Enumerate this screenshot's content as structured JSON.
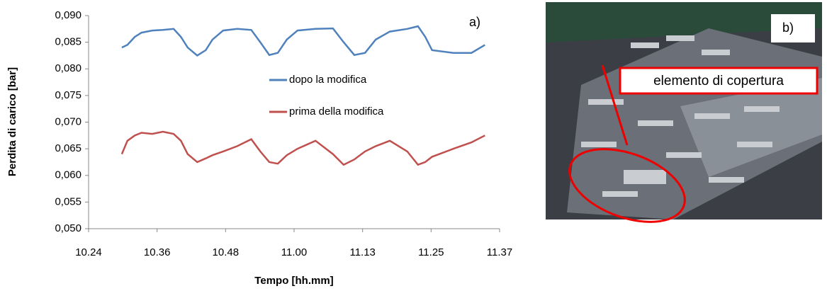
{
  "chart_data": {
    "type": "line",
    "ylabel": "Perdita di carico [bar]",
    "xlabel": "Tempo [hh.mm]",
    "annotations": [
      "a)",
      "b)",
      "elemento di copertura"
    ],
    "xlim": [
      624,
      697
    ],
    "xticks": [
      {
        "value": 624,
        "label": "10.24"
      },
      {
        "value": 636.17,
        "label": "10.36"
      },
      {
        "value": 648.33,
        "label": "10.48"
      },
      {
        "value": 660.5,
        "label": "11.00"
      },
      {
        "value": 672.67,
        "label": "11.13"
      },
      {
        "value": 684.83,
        "label": "11.25"
      },
      {
        "value": 697,
        "label": "11.37"
      }
    ],
    "ylim": [
      0.05,
      0.09
    ],
    "yticks": [
      {
        "value": 0.05,
        "label": "0,050"
      },
      {
        "value": 0.055,
        "label": "0,055"
      },
      {
        "value": 0.06,
        "label": "0,060"
      },
      {
        "value": 0.065,
        "label": "0,065"
      },
      {
        "value": 0.07,
        "label": "0,070"
      },
      {
        "value": 0.075,
        "label": "0,075"
      },
      {
        "value": 0.08,
        "label": "0,080"
      },
      {
        "value": 0.085,
        "label": "0,085"
      },
      {
        "value": 0.09,
        "label": "0,090"
      }
    ],
    "grid": false,
    "x": [
      629.9,
      630.9,
      632.2,
      633.4,
      635.3,
      637.2,
      639.1,
      640.4,
      641.6,
      643.3,
      644.8,
      646.0,
      647.9,
      650.4,
      652.9,
      654.5,
      656.1,
      657.6,
      659.2,
      661.1,
      664.3,
      667.4,
      669.3,
      671.2,
      673.1,
      675.0,
      677.5,
      680.6,
      682.5,
      683.8,
      685.0,
      688.8,
      692.0,
      694.4
    ],
    "series": [
      {
        "name": "dopo la modifica",
        "color": "#4f81bd",
        "values": [
          0.084,
          0.0845,
          0.086,
          0.0868,
          0.0872,
          0.0873,
          0.0875,
          0.086,
          0.084,
          0.0825,
          0.0835,
          0.0855,
          0.0872,
          0.0875,
          0.0873,
          0.085,
          0.0826,
          0.083,
          0.0855,
          0.0872,
          0.0875,
          0.0876,
          0.085,
          0.0826,
          0.083,
          0.0855,
          0.087,
          0.0875,
          0.088,
          0.086,
          0.0835,
          0.083,
          0.083,
          0.0845
        ]
      },
      {
        "name": "prima della modifica",
        "color": "#c0504d",
        "values": [
          0.064,
          0.0665,
          0.0675,
          0.068,
          0.0678,
          0.0682,
          0.0678,
          0.0665,
          0.064,
          0.0625,
          0.0632,
          0.0638,
          0.0645,
          0.0655,
          0.0668,
          0.0645,
          0.0625,
          0.0622,
          0.0638,
          0.065,
          0.0665,
          0.064,
          0.062,
          0.063,
          0.0645,
          0.0655,
          0.0665,
          0.0645,
          0.062,
          0.0625,
          0.0635,
          0.065,
          0.0662,
          0.0675
        ]
      }
    ]
  }
}
